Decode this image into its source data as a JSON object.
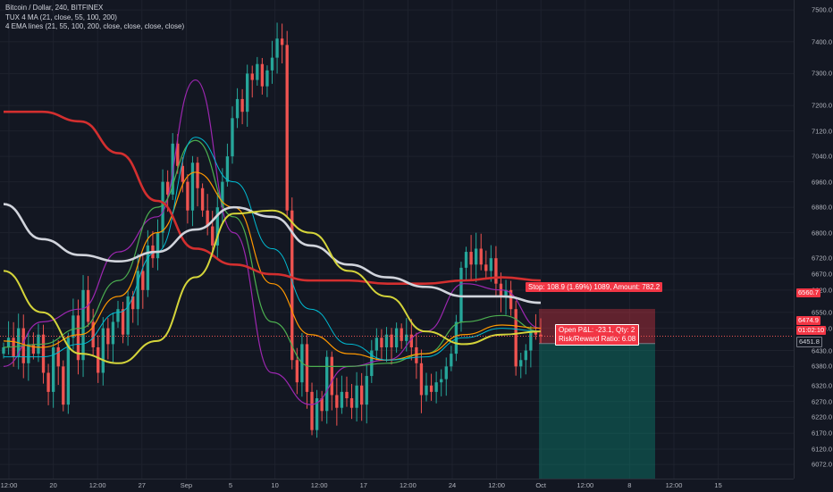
{
  "legend": {
    "symbol": "Bitcoin / Dollar, 240, BITFINEX",
    "indicator1": "TUX 4 MA (21, close, 55, 100, 200)",
    "indicator2": "4 EMA lines (21, 55, 100, 200, close, close, close, close)"
  },
  "price_axis": {
    "ticks": [
      "7500.0",
      "7400.0",
      "7300.0",
      "7200.0",
      "7120.0",
      "7040.0",
      "6960.0",
      "6880.0",
      "6800.0",
      "6720.0",
      "6670.0",
      "6620.0",
      "6550.0",
      "6500.0",
      "6430.0",
      "6380.0",
      "6320.0",
      "6270.0",
      "6220.0",
      "6170.0",
      "6120.0",
      "6072.0"
    ],
    "stop_price": "6560.7",
    "current_price": "6474.9",
    "countdown": "01:02:10",
    "entry_price": "6451.8"
  },
  "time_axis": {
    "ticks": [
      "12:00",
      "20",
      "12:00",
      "27",
      "Sep",
      "5",
      "10",
      "12:00",
      "17",
      "12:00",
      "24",
      "12:00",
      "Oct",
      "12:00",
      "8",
      "12:00",
      "15"
    ]
  },
  "position": {
    "stop_label": "Stop: 108.9 (1.69%) 1089, Amount: 782.2",
    "pnl_line1": "Open P&L: -23.1, Qty: 2",
    "pnl_line2": "Risk/Reward Ratio: 6.08"
  },
  "colors": {
    "background": "#131722",
    "bull": "#26a69a",
    "bear": "#ef5350",
    "ema21": "#9c27b0",
    "ema55": "#4caf50",
    "ema100": "#ff9800",
    "ema200": "#00bcd4",
    "ma200_red": "#d32f2f",
    "ma100_white": "#d1d4dc",
    "ma55_yellow": "#d4d43a",
    "stop_zone": "#f23645",
    "target_zone": "#089981"
  },
  "chart_data": {
    "type": "candlestick",
    "title": "Bitcoin / Dollar, 240, BITFINEX",
    "ylim": [
      6050,
      7520
    ],
    "x_ticks": [
      "12:00",
      "20",
      "12:00",
      "27",
      "Sep",
      "5",
      "10",
      "12:00",
      "17",
      "12:00",
      "24",
      "12:00",
      "Oct",
      "12:00",
      "8",
      "12:00",
      "15"
    ],
    "close": [
      6440,
      6470,
      6410,
      6500,
      6390,
      6450,
      6420,
      6480,
      6360,
      6300,
      6440,
      6380,
      6260,
      6470,
      6540,
      6400,
      6620,
      6520,
      6440,
      6360,
      6500,
      6450,
      6520,
      6560,
      6480,
      6600,
      6560,
      6680,
      6620,
      6760,
      6720,
      6800,
      6960,
      6920,
      7080,
      7010,
      6960,
      6870,
      7020,
      6940,
      6870,
      6820,
      6760,
      6880,
      6960,
      7040,
      7160,
      7220,
      7180,
      7300,
      7280,
      7330,
      7260,
      7310,
      7350,
      7410,
      7390,
      6870,
      6400,
      6330,
      6450,
      6300,
      6180,
      6280,
      6240,
      6410,
      6290,
      6250,
      6300,
      6280,
      6250,
      6320,
      6260,
      6350,
      6430,
      6470,
      6440,
      6480,
      6440,
      6500,
      6460,
      6480,
      6440,
      6390,
      6290,
      6320,
      6300,
      6330,
      6340,
      6380,
      6420,
      6520,
      6690,
      6740,
      6700,
      6750,
      6700,
      6680,
      6720,
      6640,
      6600,
      6620,
      6560,
      6380,
      6400,
      6430,
      6490,
      6480,
      6475
    ],
    "series": [
      {
        "name": "EMA 21",
        "values": [
          6380,
          6520,
          6560,
          6740,
          6850,
          7280,
          6800,
          6360,
          6260,
          6380,
          6400,
          6490,
          6640,
          6620,
          6500
        ]
      },
      {
        "name": "EMA 55",
        "values": [
          6440,
          6450,
          6500,
          6650,
          6880,
          7090,
          6850,
          6520,
          6380,
          6380,
          6390,
          6420,
          6520,
          6540,
          6490
        ]
      },
      {
        "name": "EMA 100",
        "values": [
          6460,
          6440,
          6480,
          6600,
          6800,
          6990,
          6880,
          6640,
          6480,
          6420,
          6400,
          6420,
          6480,
          6510,
          6500
        ]
      },
      {
        "name": "EMA 200",
        "values": [
          6410,
          6410,
          6450,
          6550,
          6740,
          7100,
          6960,
          6750,
          6560,
          6450,
          6400,
          6410,
          6470,
          6500,
          6490
        ]
      },
      {
        "name": "MA 200",
        "values": [
          7180,
          7180,
          7150,
          7050,
          6900,
          6750,
          6700,
          6670,
          6650,
          6650,
          6640,
          6640,
          6650,
          6660,
          6650
        ]
      },
      {
        "name": "MA 100",
        "values": [
          6890,
          6780,
          6730,
          6710,
          6740,
          6810,
          6880,
          6850,
          6760,
          6700,
          6660,
          6630,
          6600,
          6600,
          6580
        ]
      },
      {
        "name": "MA 55",
        "values": [
          6680,
          6550,
          6420,
          6390,
          6460,
          6660,
          6860,
          6870,
          6800,
          6680,
          6600,
          6490,
          6450,
          6480,
          6490
        ]
      }
    ]
  }
}
